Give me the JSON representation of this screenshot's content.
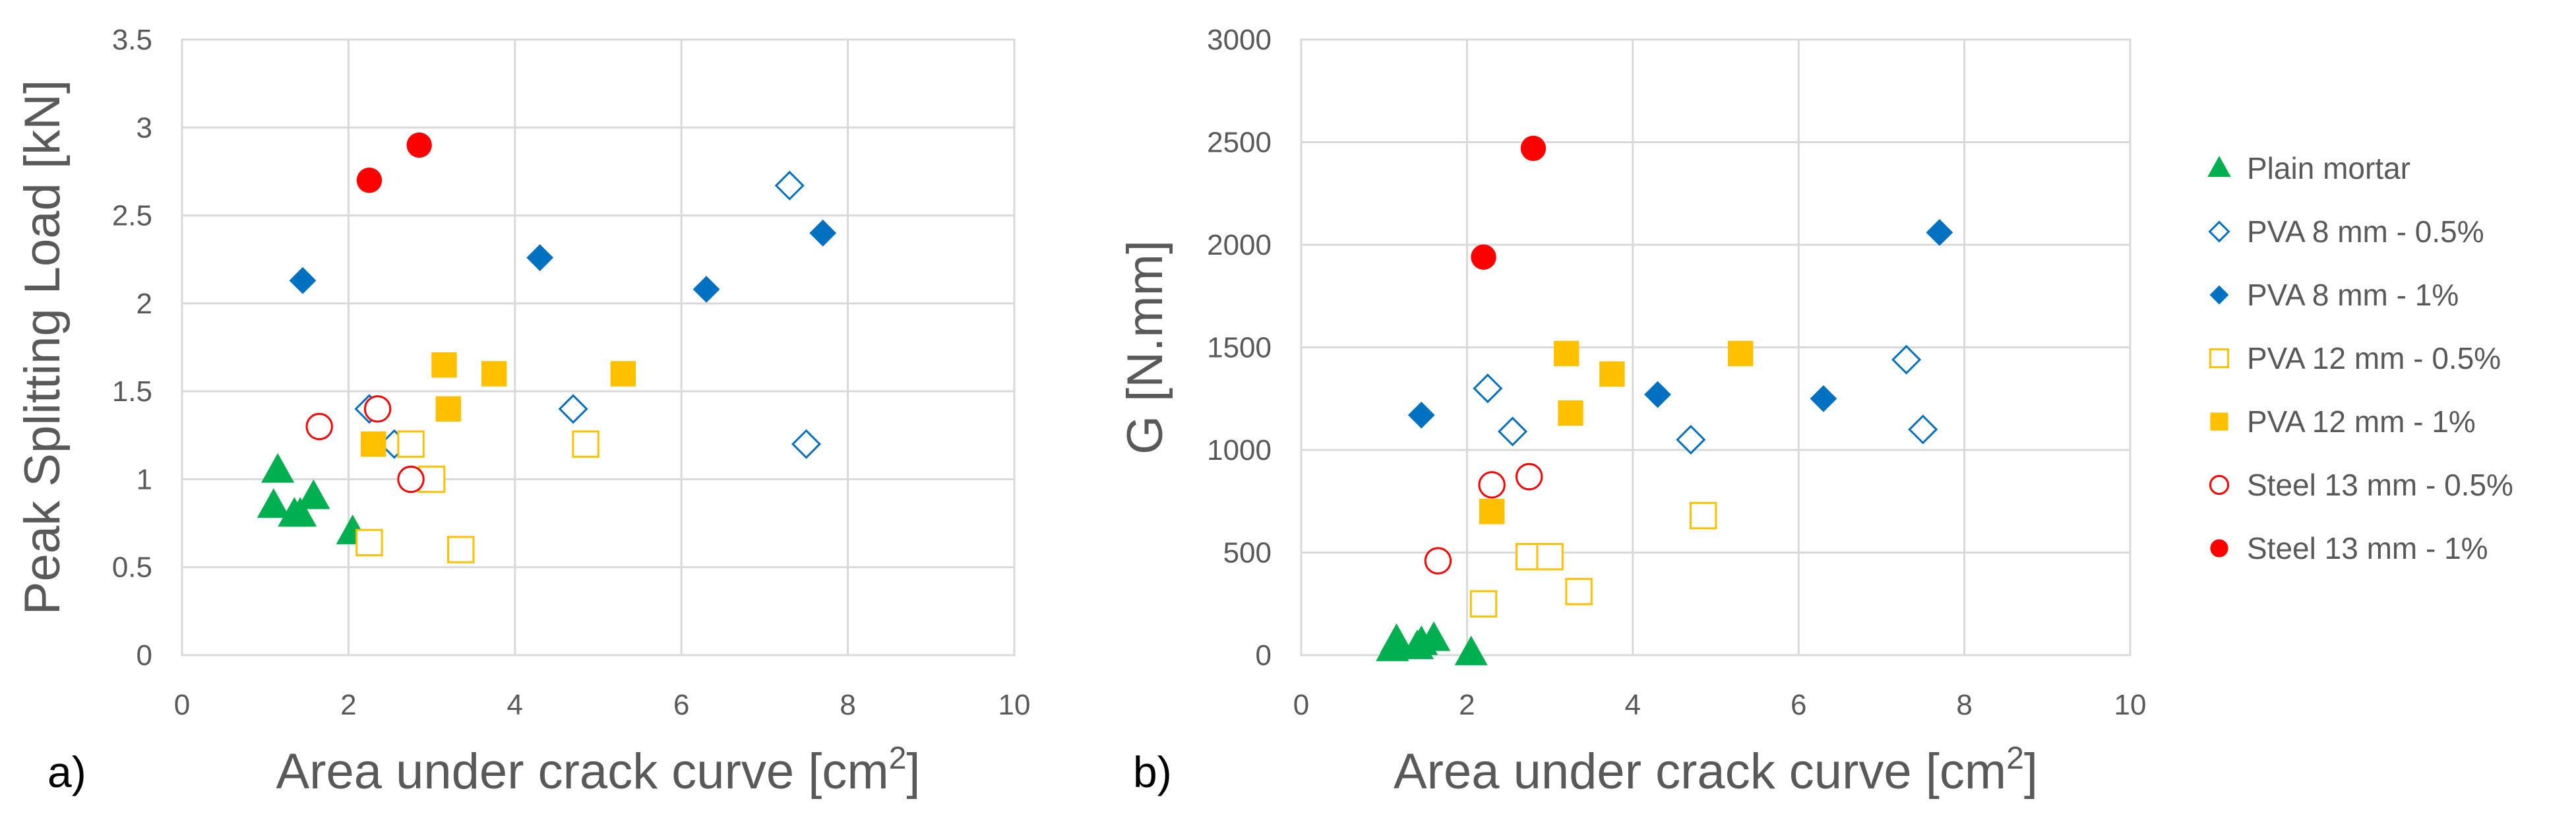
{
  "panel_labels": [
    "a)",
    "b)"
  ],
  "legend": [
    {
      "key": "plain",
      "label": "Plain mortar",
      "marker": "triangle",
      "filled": true,
      "color": "#00B050"
    },
    {
      "key": "pva8_05",
      "label": "PVA 8 mm - 0.5%",
      "marker": "diamond",
      "filled": false,
      "color": "#0070C0"
    },
    {
      "key": "pva8_1",
      "label": "PVA 8 mm - 1%",
      "marker": "diamond",
      "filled": true,
      "color": "#0070C0"
    },
    {
      "key": "pva12_05",
      "label": "PVA 12 mm - 0.5%",
      "marker": "square",
      "filled": false,
      "color": "#FFC000"
    },
    {
      "key": "pva12_1",
      "label": "PVA 12 mm - 1%",
      "marker": "square",
      "filled": true,
      "color": "#FFC000"
    },
    {
      "key": "steel_05",
      "label": "Steel 13 mm - 0.5%",
      "marker": "circle",
      "filled": false,
      "color": "#FF0000"
    },
    {
      "key": "steel_1",
      "label": "Steel 13 mm - 1%",
      "marker": "circle",
      "filled": true,
      "color": "#FF0000"
    }
  ],
  "chart_data": [
    {
      "type": "scatter",
      "panel": "a)",
      "xlabel": "Area under crack curve [cm2]",
      "xlabel_main": "Area under crack curve [cm",
      "xlabel_sup": "2",
      "xlabel_end": "]",
      "ylabel": "Peak Splitting Load [kN]",
      "xlim": [
        0,
        10
      ],
      "ylim": [
        0,
        3.5
      ],
      "xticks": [
        0,
        2,
        4,
        6,
        8,
        10
      ],
      "yticks": [
        0,
        0.5,
        1,
        1.5,
        2,
        2.5,
        3,
        3.5
      ],
      "ytick_labels": [
        "0",
        "0.5",
        "1",
        "1.5",
        "2",
        "2.5",
        "3",
        "3.5"
      ],
      "grid": true,
      "series": [
        {
          "key": "plain",
          "name": "Plain mortar",
          "x": [
            1.1,
            1.15,
            1.35,
            1.42,
            1.58,
            2.05
          ],
          "y": [
            0.85,
            1.05,
            0.8,
            0.8,
            0.9,
            0.7
          ]
        },
        {
          "key": "pva8_05",
          "name": "PVA 8 mm - 0.5%",
          "x": [
            2.25,
            2.55,
            4.7,
            7.3,
            7.5
          ],
          "y": [
            1.4,
            1.2,
            1.4,
            2.67,
            1.2
          ]
        },
        {
          "key": "pva8_1",
          "name": "PVA 8 mm - 1%",
          "x": [
            1.45,
            4.3,
            6.3,
            7.7
          ],
          "y": [
            2.13,
            2.26,
            2.08,
            2.4
          ]
        },
        {
          "key": "pva12_05",
          "name": "PVA 12 mm - 0.5%",
          "x": [
            2.25,
            2.75,
            3.0,
            3.35,
            4.85
          ],
          "y": [
            0.64,
            1.2,
            1.0,
            0.6,
            1.2
          ]
        },
        {
          "key": "pva12_1",
          "name": "PVA 12 mm - 1%",
          "x": [
            2.3,
            3.15,
            3.2,
            3.75,
            5.3
          ],
          "y": [
            1.2,
            1.65,
            1.4,
            1.6,
            1.6
          ]
        },
        {
          "key": "steel_05",
          "name": "Steel 13 mm - 0.5%",
          "x": [
            1.65,
            2.35,
            2.75
          ],
          "y": [
            1.3,
            1.4,
            1.0
          ]
        },
        {
          "key": "steel_1",
          "name": "Steel 13 mm - 1%",
          "x": [
            2.25,
            2.85
          ],
          "y": [
            2.7,
            2.9
          ]
        }
      ]
    },
    {
      "type": "scatter",
      "panel": "b)",
      "xlabel": "Area under crack curve [cm2]",
      "xlabel_main": "Area under crack curve [cm",
      "xlabel_sup": "2",
      "xlabel_end": "]",
      "ylabel": "G [N.mm]",
      "xlim": [
        0,
        10
      ],
      "ylim": [
        0,
        3000
      ],
      "xticks": [
        0,
        2,
        4,
        6,
        8,
        10
      ],
      "yticks": [
        0,
        500,
        1000,
        1500,
        2000,
        2500,
        3000
      ],
      "ytick_labels": [
        "0",
        "500",
        "1000",
        "1500",
        "2000",
        "2500",
        "3000"
      ],
      "grid": true,
      "series": [
        {
          "key": "plain",
          "name": "Plain mortar",
          "x": [
            1.1,
            1.15,
            1.4,
            1.45,
            1.6,
            2.05
          ],
          "y": [
            30,
            70,
            40,
            60,
            80,
            10
          ]
        },
        {
          "key": "pva8_05",
          "name": "PVA 8 mm - 0.5%",
          "x": [
            2.25,
            2.55,
            4.7,
            7.3,
            7.5
          ],
          "y": [
            1300,
            1090,
            1050,
            1440,
            1100
          ]
        },
        {
          "key": "pva8_1",
          "name": "PVA 8 mm - 1%",
          "x": [
            1.45,
            4.3,
            6.3,
            7.7
          ],
          "y": [
            1170,
            1270,
            1250,
            2060
          ]
        },
        {
          "key": "pva12_05",
          "name": "PVA 12 mm - 0.5%",
          "x": [
            2.2,
            2.75,
            3.0,
            3.35,
            4.85
          ],
          "y": [
            250,
            480,
            480,
            310,
            680
          ]
        },
        {
          "key": "pva12_1",
          "name": "PVA 12 mm - 1%",
          "x": [
            2.3,
            3.2,
            3.25,
            3.75,
            5.3
          ],
          "y": [
            700,
            1470,
            1180,
            1370,
            1470
          ]
        },
        {
          "key": "steel_05",
          "name": "Steel 13 mm - 0.5%",
          "x": [
            1.65,
            2.3,
            2.75
          ],
          "y": [
            460,
            830,
            870
          ]
        },
        {
          "key": "steel_1",
          "name": "Steel 13 mm - 1%",
          "x": [
            2.2,
            2.8
          ],
          "y": [
            1940,
            2470
          ]
        }
      ]
    }
  ]
}
